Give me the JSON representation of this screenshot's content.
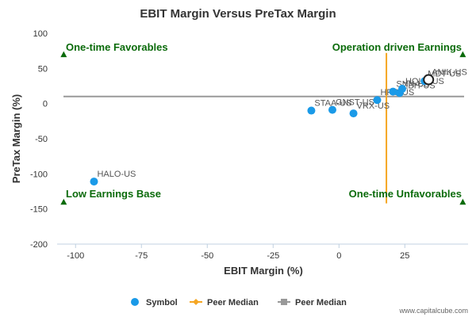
{
  "chart_data": {
    "type": "scatter",
    "title": "EBIT Margin Versus PreTax Margin",
    "xlabel": "EBIT Margin (%)",
    "ylabel": "PreTax Margin (%)",
    "xlim": [
      -107,
      49
    ],
    "ylim": [
      -200,
      100
    ],
    "xticks": [
      -100,
      -75,
      -50,
      -25,
      0,
      25
    ],
    "yticks": [
      100,
      50,
      0,
      -50,
      -100,
      -150,
      -200
    ],
    "grid": false,
    "points": [
      {
        "label": "HALO-US",
        "x": -93,
        "y": -111
      },
      {
        "label": "STAA-US",
        "x": -10.5,
        "y": -10
      },
      {
        "label": "GNST-US",
        "x": -2.5,
        "y": -9
      },
      {
        "label": "VRX-US",
        "x": 5.5,
        "y": -14
      },
      {
        "label": "HRC-US",
        "x": 14.5,
        "y": 5
      },
      {
        "label": "SNN-US",
        "x": 20.5,
        "y": 17
      },
      {
        "label": "ZBH-US",
        "x": 23,
        "y": 15
      },
      {
        "label": "HOLX-US",
        "x": 24,
        "y": 21
      },
      {
        "label": "MDT-US",
        "x": 32.5,
        "y": 32
      },
      {
        "label": "ANIK-US",
        "x": 34,
        "y": 34
      }
    ],
    "highlight_label": "ANIK-US",
    "peer_median_x": 18,
    "peer_median_y": 10,
    "quadrant_labels": {
      "top_left": "One-time Favorables",
      "top_right": "Operation driven Earnings",
      "bottom_left": "Low Earnings Base",
      "bottom_right": "One-time Unfavorables"
    },
    "legend": [
      {
        "name": "Symbol",
        "marker": "circle",
        "color": "#1a9ae8"
      },
      {
        "name": "Peer Median",
        "marker": "diamond-line",
        "color": "#f5a623"
      },
      {
        "name": "Peer Median",
        "marker": "square-line",
        "color": "#999999"
      }
    ],
    "legend_position": "bottom",
    "colors": {
      "points": "#1a9ae8",
      "peer_median_x_line": "#f5a623",
      "peer_median_y_line": "#999999",
      "quadrant_markers": "#0b6b0b",
      "quadrant_labels": "#0b6b0b"
    }
  },
  "credit": "www.capitalcube.com"
}
